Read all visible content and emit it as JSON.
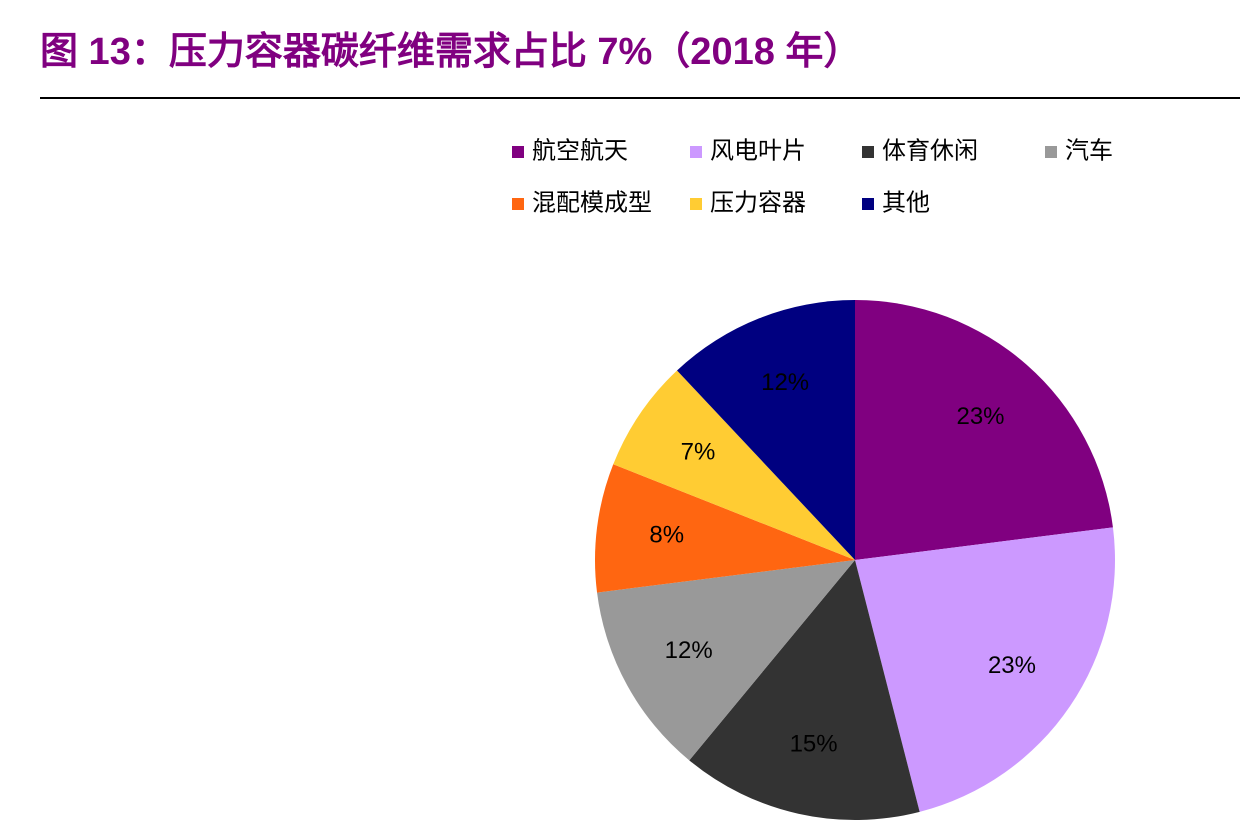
{
  "chart_data": {
    "type": "pie",
    "title": "图 13：压力容器碳纤维需求占比 7%（2018 年）",
    "categories": [
      "航空航天",
      "风电叶片",
      "体育休闲",
      "汽车",
      "混配模成型",
      "压力容器",
      "其他"
    ],
    "values": [
      23,
      23,
      15,
      12,
      8,
      7,
      12
    ],
    "value_labels": [
      "23%",
      "23%",
      "15%",
      "12%",
      "8%",
      "7%",
      "12%"
    ],
    "colors": [
      "#800080",
      "#cc99ff",
      "#333333",
      "#999999",
      "#ff6611",
      "#ffcc33",
      "#000080"
    ],
    "legend": "top"
  }
}
